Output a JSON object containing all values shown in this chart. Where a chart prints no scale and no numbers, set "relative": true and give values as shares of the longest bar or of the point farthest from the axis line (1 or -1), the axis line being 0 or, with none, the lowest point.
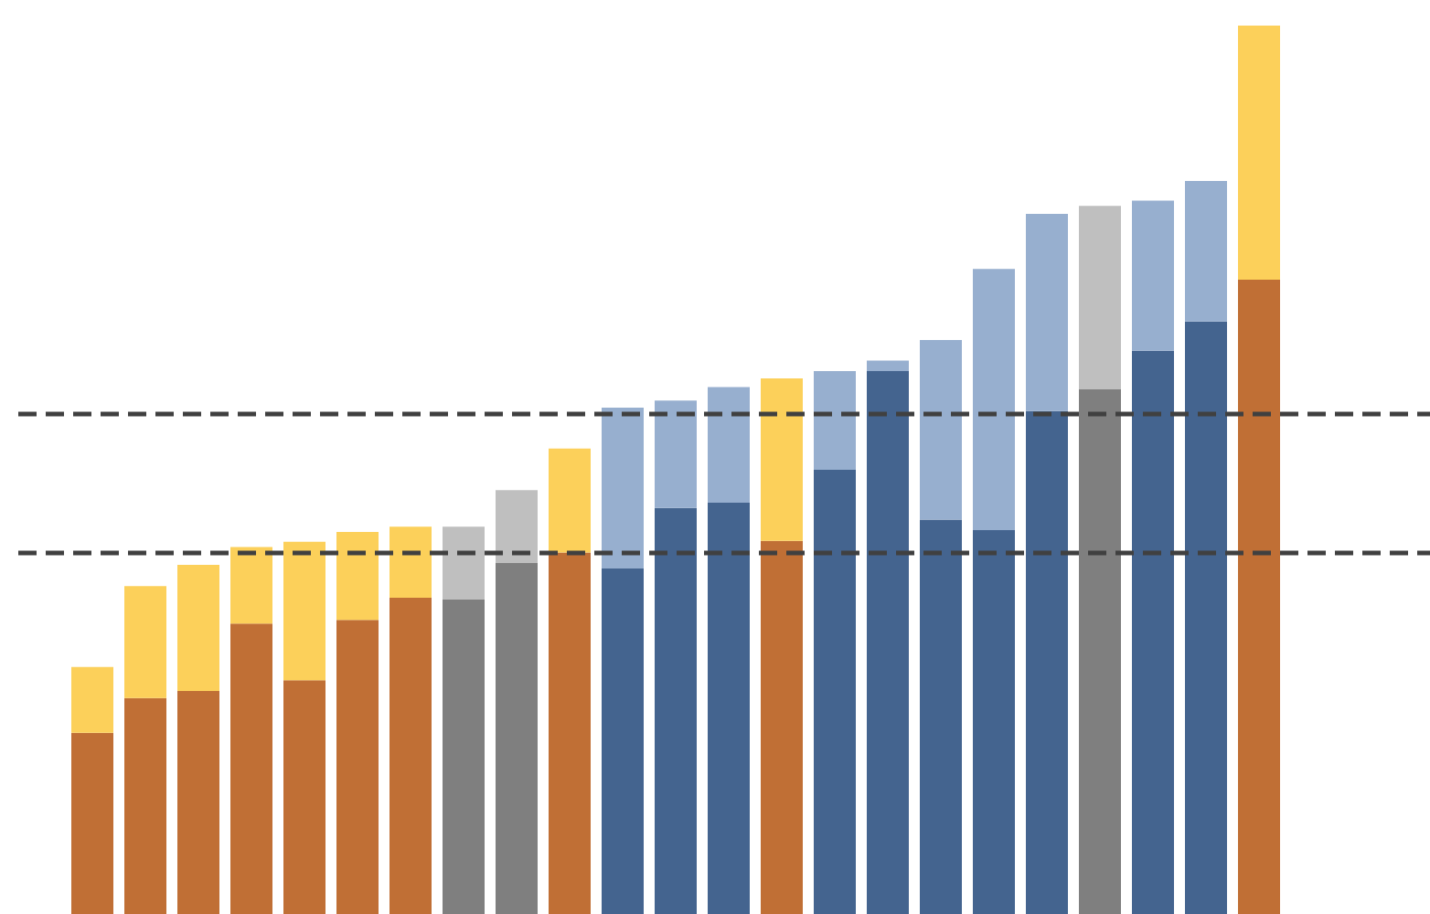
{
  "chart_data": {
    "type": "bar",
    "relative": true,
    "stacked": true,
    "categories": [
      null,
      null,
      null,
      null,
      null,
      null,
      null,
      null,
      null,
      null,
      null,
      null,
      null,
      null,
      null,
      null,
      null,
      null,
      null,
      null,
      null,
      null,
      null
    ],
    "series": [
      {
        "values": [
          0.204,
          0.243,
          0.251,
          0.327,
          0.263,
          0.331,
          0.356,
          0.354,
          0.395,
          0.407,
          0.389,
          0.457,
          0.463,
          0.42,
          0.5,
          0.611,
          0.444,
          0.432,
          0.566,
          0.591,
          0.634,
          0.667,
          0.714
        ],
        "colors": [
          "#c06f35",
          "#c06f35",
          "#c06f35",
          "#c06f35",
          "#c06f35",
          "#c06f35",
          "#c06f35",
          "#7f7f7f",
          "#7f7f7f",
          "#c06f35",
          "#44648f",
          "#44648f",
          "#44648f",
          "#c06f35",
          "#44648f",
          "#44648f",
          "#44648f",
          "#44648f",
          "#44648f",
          "#7f7f7f",
          "#44648f",
          "#44648f",
          "#c06f35"
        ]
      },
      {
        "values": [
          0.074,
          0.126,
          0.142,
          0.086,
          0.156,
          0.099,
          0.08,
          0.082,
          0.082,
          0.117,
          0.181,
          0.121,
          0.13,
          0.183,
          0.111,
          0.012,
          0.202,
          0.294,
          0.222,
          0.206,
          0.169,
          0.158,
          0.286
        ],
        "colors": [
          "#fcd05a",
          "#fcd05a",
          "#fcd05a",
          "#fcd05a",
          "#fcd05a",
          "#fcd05a",
          "#fcd05a",
          "#bfbfbf",
          "#bfbfbf",
          "#fcd05a",
          "#97afcf",
          "#97afcf",
          "#97afcf",
          "#fcd05a",
          "#97afcf",
          "#97afcf",
          "#97afcf",
          "#97afcf",
          "#97afcf",
          "#bfbfbf",
          "#97afcf",
          "#97afcf",
          "#fcd05a"
        ]
      }
    ],
    "ref_lines": [
      {
        "axis": "y",
        "value": 0.564,
        "color": "#404040",
        "line_style": "dashed"
      },
      {
        "axis": "y",
        "value": 0.407,
        "color": "#404040",
        "line_style": "dashed"
      }
    ]
  }
}
